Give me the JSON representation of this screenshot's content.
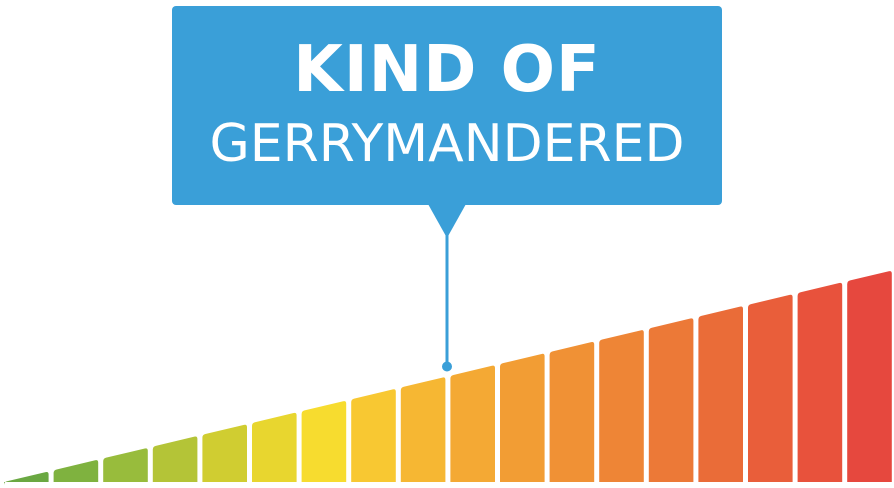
{
  "callout": {
    "line1": "KIND OF",
    "line2": "GERRYMANDERED",
    "background_color": "#3a9fd8"
  },
  "gauge": {
    "segment_count": 18,
    "indicated_segment": 9,
    "level_fraction": 0.5,
    "colors": [
      "#6aa842",
      "#7fb23f",
      "#98bc3c",
      "#b4c437",
      "#d0cd31",
      "#e8d62f",
      "#f7dc2f",
      "#f8c832",
      "#f6b733",
      "#f4a934",
      "#f29d34",
      "#f09135",
      "#ee8536",
      "#ec7937",
      "#ea6c38",
      "#e95e3a",
      "#e8523c",
      "#e6483e"
    ]
  }
}
